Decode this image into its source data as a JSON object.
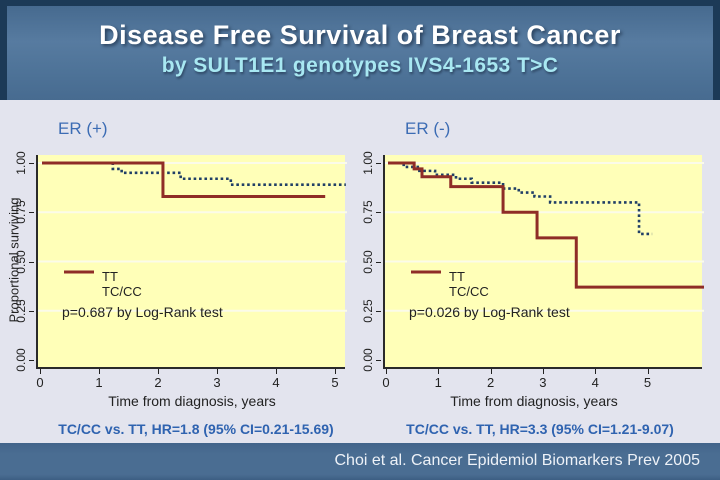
{
  "slide": {
    "title": "Disease Free Survival of Breast Cancer",
    "subtitle": "by SULT1E1 genotypes IVS4-1653 T>C",
    "citation": "Choi et al. Cancer Epidemiol Biomarkers Prev 2005"
  },
  "colors": {
    "tt_line": "#203f66",
    "tccc_line": "#8f2d27",
    "gridline": "#fbfbe9",
    "plot_bg": "#ffffb8",
    "accent_blue": "#2f63b0",
    "panel_label_blue": "#3c6cb4",
    "header_bg": "#4e7398",
    "citation_bg": "#4a6d92"
  },
  "chart_data": [
    {
      "type": "line",
      "subtype": "kaplan-meier-step",
      "panel_label": "ER (+)",
      "xlabel": "Time from diagnosis, years",
      "ylabel": "Proportional surviving",
      "xlim": [
        0,
        5.2
      ],
      "ylim": [
        0,
        1.04
      ],
      "xticks": [
        "0",
        "1",
        "2",
        "3",
        "4",
        "5"
      ],
      "yticks": [
        "1.00",
        "0.75",
        "0.50",
        "0.25",
        "0.00"
      ],
      "grid": true,
      "legend_position": "inside-left-middle",
      "p_text": "p=0.687 by Log-Rank test",
      "hr_text": "TC/CC vs. TT, HR=1.8 (95% CI=0.21-15.69)",
      "series": [
        {
          "name": "TT",
          "style": "dashed",
          "points": [
            [
              0,
              1.0
            ],
            [
              1.2,
              0.97
            ],
            [
              1.35,
              0.95
            ],
            [
              2.35,
              0.92
            ],
            [
              3.2,
              0.89
            ],
            [
              5.15,
              0.89
            ]
          ]
        },
        {
          "name": "TC/CC",
          "style": "solid",
          "points": [
            [
              0,
              1.0
            ],
            [
              2.05,
              0.83
            ],
            [
              4.8,
              0.83
            ]
          ]
        }
      ]
    },
    {
      "type": "line",
      "subtype": "kaplan-meier-step",
      "panel_label": "ER (-)",
      "xlabel": "Time from diagnosis, years",
      "ylabel": "",
      "xlim": [
        0,
        6.1
      ],
      "ylim": [
        0,
        1.04
      ],
      "xticks": [
        "0",
        "1",
        "2",
        "3",
        "4",
        "5"
      ],
      "yticks": [
        "1.00",
        "0.75",
        "0.50",
        "0.25",
        "0.00"
      ],
      "grid": true,
      "legend_position": "inside-left-middle",
      "p_text": "p=0.026 by Log-Rank test",
      "hr_text": "TC/CC vs. TT, HR=3.3 (95% CI=1.21-9.07)",
      "series": [
        {
          "name": "TT",
          "style": "dashed",
          "points": [
            [
              0,
              1.0
            ],
            [
              0.3,
              0.98
            ],
            [
              0.6,
              0.96
            ],
            [
              0.9,
              0.94
            ],
            [
              1.3,
              0.92
            ],
            [
              1.6,
              0.9
            ],
            [
              2.2,
              0.87
            ],
            [
              2.5,
              0.85
            ],
            [
              2.8,
              0.83
            ],
            [
              3.1,
              0.8
            ],
            [
              4.8,
              0.64
            ],
            [
              5.05,
              0.64
            ]
          ]
        },
        {
          "name": "TC/CC",
          "style": "solid",
          "points": [
            [
              0,
              1.0
            ],
            [
              0.5,
              0.97
            ],
            [
              0.65,
              0.93
            ],
            [
              1.2,
              0.88
            ],
            [
              2.2,
              0.75
            ],
            [
              2.85,
              0.62
            ],
            [
              3.6,
              0.37
            ],
            [
              6.05,
              0.37
            ]
          ]
        }
      ]
    }
  ]
}
